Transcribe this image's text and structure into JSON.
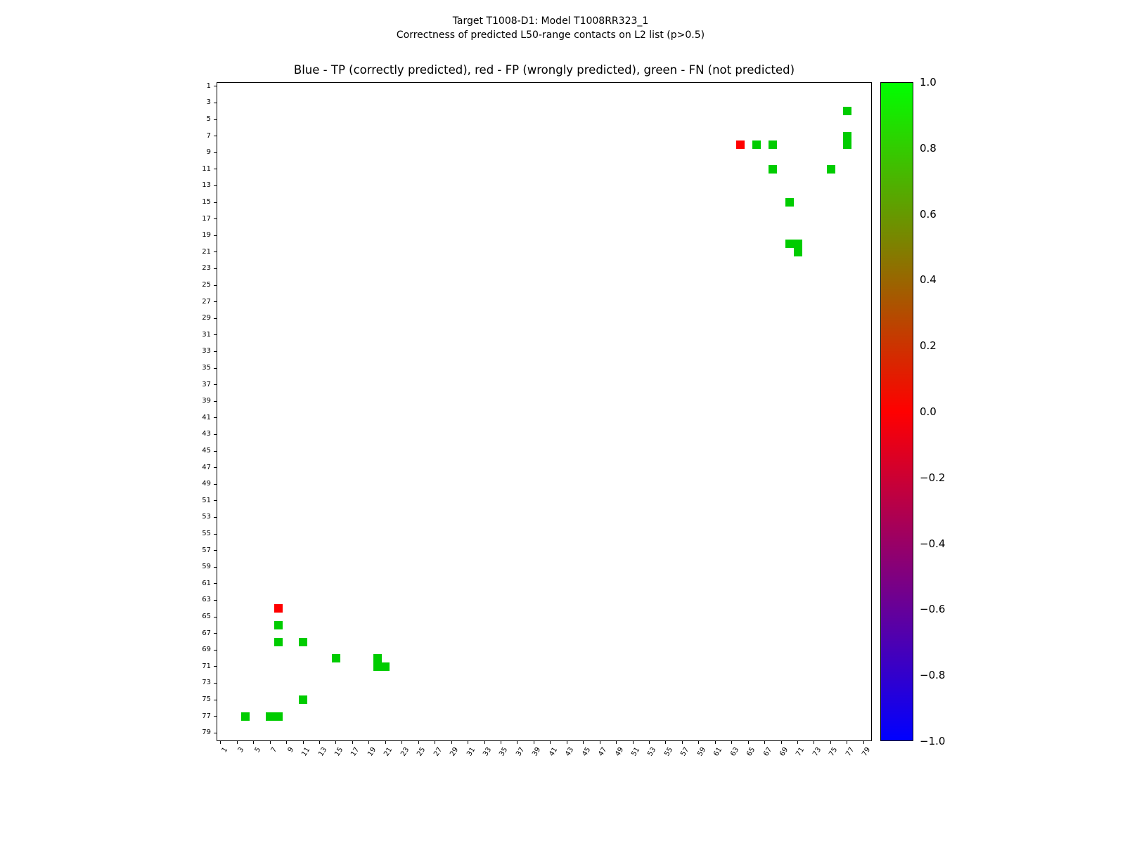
{
  "page": {
    "suptitle_line1": "Target T1008-D1: Model T1008RR323_1",
    "suptitle_line2": "Correctness of predicted L50-range contacts on L2 list (p>0.5)"
  },
  "chart_data": {
    "type": "heatmap",
    "title": "Blue - TP (correctly predicted), red - FP (wrongly predicted), green - FN (not predicted)",
    "suptitle": [
      "Target T1008-D1: Model T1008RR323_1",
      "Correctness of predicted L50-range contacts on L2 list (p>0.5)"
    ],
    "xlabel": "",
    "ylabel": "",
    "axis_range": [
      0.5,
      80.0
    ],
    "grid": false,
    "symmetric": true,
    "x_ticks": [
      1,
      3,
      5,
      7,
      9,
      11,
      13,
      15,
      17,
      19,
      21,
      23,
      25,
      27,
      29,
      31,
      33,
      35,
      37,
      39,
      41,
      43,
      45,
      47,
      49,
      51,
      53,
      55,
      57,
      59,
      61,
      63,
      65,
      67,
      69,
      71,
      73,
      75,
      77,
      79
    ],
    "y_ticks": [
      1,
      3,
      5,
      7,
      9,
      11,
      13,
      15,
      17,
      19,
      21,
      23,
      25,
      27,
      29,
      31,
      33,
      35,
      37,
      39,
      41,
      43,
      45,
      47,
      49,
      51,
      53,
      55,
      57,
      59,
      61,
      63,
      65,
      67,
      69,
      71,
      73,
      75,
      77,
      79
    ],
    "legend": {
      "TP": "Blue - TP (correctly predicted)",
      "FP": "red - FP (wrongly predicted)",
      "FN": "green - FN (not predicted)"
    },
    "colors": {
      "TP": "#0000ff",
      "FP": "#ff0000",
      "FN": "#00cc00"
    },
    "value_map": {
      "TP": -1.0,
      "FP": 0.0,
      "FN": 1.0
    },
    "contacts": [
      {
        "i": 4,
        "j": 77,
        "type": "FN"
      },
      {
        "i": 7,
        "j": 77,
        "type": "FN"
      },
      {
        "i": 8,
        "j": 64,
        "type": "FP"
      },
      {
        "i": 8,
        "j": 66,
        "type": "FN"
      },
      {
        "i": 8,
        "j": 68,
        "type": "FN"
      },
      {
        "i": 8,
        "j": 77,
        "type": "FN"
      },
      {
        "i": 11,
        "j": 68,
        "type": "FN"
      },
      {
        "i": 11,
        "j": 75,
        "type": "FN"
      },
      {
        "i": 15,
        "j": 70,
        "type": "FN"
      },
      {
        "i": 20,
        "j": 70,
        "type": "FN"
      },
      {
        "i": 20,
        "j": 71,
        "type": "FN"
      },
      {
        "i": 21,
        "j": 71,
        "type": "FN"
      }
    ],
    "colorbar": {
      "min": -1.0,
      "max": 1.0,
      "tick_labels": [
        "1.0",
        "0.8",
        "0.6",
        "0.4",
        "0.2",
        "0.0",
        "−0.2",
        "−0.4",
        "−0.6",
        "−0.8",
        "−1.0"
      ],
      "gradient_top_to_bottom": [
        "#00ff00",
        "#ff0000",
        "#0000ff"
      ],
      "position": "right"
    }
  }
}
